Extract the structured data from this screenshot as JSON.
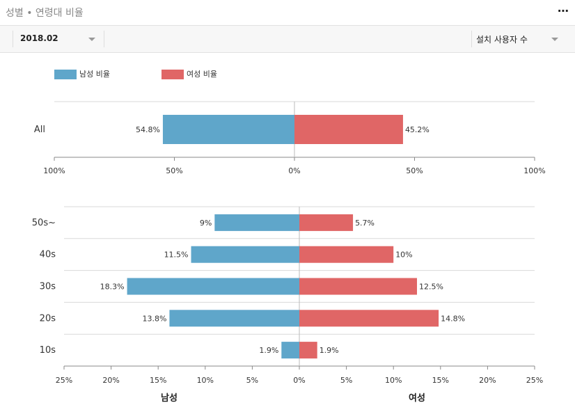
{
  "header": {
    "title": "성별 • 연령대 비율",
    "more_icon": "more-icon"
  },
  "toolbar": {
    "period_value": "2018.02",
    "metric_value": "설치 사용자 수"
  },
  "colors": {
    "male": "#5fa6ca",
    "female": "#e06666"
  },
  "legend": {
    "male_label": "남성 비율",
    "female_label": "여성 비율"
  },
  "chart_data": [
    {
      "type": "bar",
      "orientation": "horizontal-diverging",
      "categories": [
        "All"
      ],
      "series": [
        {
          "name": "남성 비율",
          "values": [
            54.8
          ]
        },
        {
          "name": "여성 비율",
          "values": [
            45.2
          ]
        }
      ],
      "value_labels": {
        "male": [
          "54.8%"
        ],
        "female": [
          "45.2%"
        ]
      },
      "xlim": [
        -100,
        100
      ],
      "tick_labels": [
        "100%",
        "50%",
        "0%",
        "50%",
        "100%"
      ],
      "grid": true
    },
    {
      "type": "bar",
      "orientation": "horizontal-diverging",
      "categories": [
        "50s~",
        "40s",
        "30s",
        "20s",
        "10s"
      ],
      "series": [
        {
          "name": "남성 비율",
          "values": [
            9,
            11.5,
            18.3,
            13.8,
            1.9
          ]
        },
        {
          "name": "여성 비율",
          "values": [
            5.7,
            10,
            12.5,
            14.8,
            1.9
          ]
        }
      ],
      "value_labels": {
        "male": [
          "9%",
          "11.5%",
          "18.3%",
          "13.8%",
          "1.9%"
        ],
        "female": [
          "5.7%",
          "10%",
          "12.5%",
          "14.8%",
          "1.9%"
        ]
      },
      "xlim": [
        -25,
        25
      ],
      "tick_labels": [
        "25%",
        "20%",
        "15%",
        "10%",
        "5%",
        "0%",
        "5%",
        "10%",
        "15%",
        "20%",
        "25%"
      ],
      "xlabel_left": "남성",
      "xlabel_right": "여성",
      "grid": true
    }
  ]
}
